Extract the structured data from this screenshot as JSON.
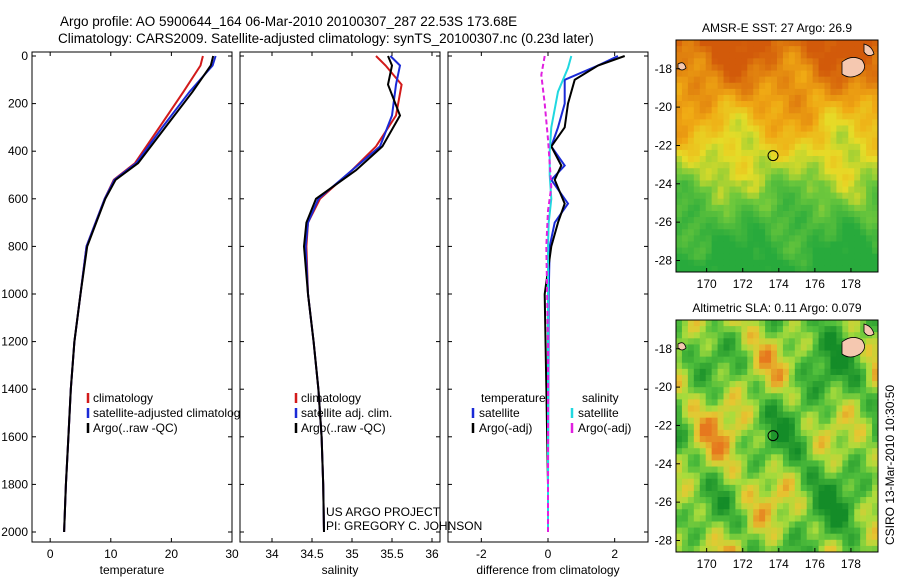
{
  "header": {
    "line1": "Argo profile: AO 5900644_164 06-Mar-2010 20100307_287 22.53S 173.68E",
    "line2": "Climatology: CARS2009. Satellite-adjusted climatology: synTS_20100307.nc (0.23d later)"
  },
  "colors": {
    "climatology": "#d21a1a",
    "satellite": "#1a2ad6",
    "argo": "#000000",
    "sal_satellite": "#20d8e0",
    "sal_argo": "#e020e0"
  },
  "chart_data": [
    {
      "type": "line",
      "name": "temperature",
      "xlabel": "temperature",
      "ylabel": "",
      "xlim": [
        -3,
        30
      ],
      "ylim": [
        2000,
        0
      ],
      "y_reversed": true,
      "xticks": [
        0,
        10,
        20,
        30
      ],
      "yticks": [
        0,
        200,
        400,
        600,
        800,
        1000,
        1200,
        1400,
        1600,
        1800,
        2000
      ],
      "series": [
        {
          "name": "climatology",
          "color": "#d21a1a",
          "x": [
            25.2,
            24.8,
            22,
            18,
            14,
            10.5,
            9,
            7.5,
            6,
            5,
            4,
            3.4,
            3,
            2.6,
            2.3
          ],
          "y": [
            0,
            40,
            150,
            300,
            450,
            520,
            600,
            700,
            800,
            1000,
            1200,
            1400,
            1600,
            1800,
            2000
          ]
        },
        {
          "name": "satellite-adjusted climatology",
          "color": "#1a2ad6",
          "x": [
            27.3,
            26.8,
            23,
            18.5,
            14.2,
            10.6,
            9,
            7.5,
            6,
            5,
            4,
            3.4,
            3,
            2.6,
            2.3
          ],
          "y": [
            0,
            40,
            150,
            300,
            450,
            520,
            600,
            700,
            800,
            1000,
            1200,
            1400,
            1600,
            1800,
            2000
          ]
        },
        {
          "name": "Argo(..raw -QC)",
          "color": "#000000",
          "x": [
            26.9,
            26.5,
            23.5,
            19,
            14.5,
            10.8,
            9.1,
            7.6,
            6.1,
            5,
            4,
            3.4,
            3,
            2.6,
            2.3
          ],
          "y": [
            0,
            40,
            150,
            300,
            450,
            520,
            600,
            700,
            800,
            1000,
            1200,
            1400,
            1600,
            1800,
            2000
          ]
        }
      ],
      "legend": [
        "climatology",
        "satellite-adjusted climatology",
        "Argo(..raw -QC)"
      ]
    },
    {
      "type": "line",
      "name": "salinity",
      "xlabel": "salinity",
      "ylabel": "",
      "xlim": [
        33.6,
        36.1
      ],
      "ylim": [
        2000,
        0
      ],
      "y_reversed": true,
      "xticks": [
        34,
        34.5,
        35,
        35.5,
        36
      ],
      "series": [
        {
          "name": "climatology",
          "color": "#d21a1a",
          "x": [
            35.3,
            35.42,
            35.62,
            35.55,
            35.3,
            35.0,
            34.6,
            34.45,
            34.43,
            34.45,
            34.52,
            34.58,
            34.62,
            34.64,
            34.65
          ],
          "y": [
            0,
            40,
            120,
            250,
            380,
            480,
            600,
            700,
            800,
            1000,
            1200,
            1400,
            1600,
            1800,
            2000
          ]
        },
        {
          "name": "satellite adj. clim.",
          "color": "#1a2ad6",
          "x": [
            35.48,
            35.6,
            35.55,
            35.5,
            35.35,
            35.0,
            34.58,
            34.45,
            34.42,
            34.45,
            34.52,
            34.58,
            34.62,
            34.64,
            34.65
          ],
          "y": [
            0,
            40,
            120,
            250,
            380,
            480,
            600,
            700,
            800,
            1000,
            1200,
            1400,
            1600,
            1800,
            2000
          ]
        },
        {
          "name": "Argo(..raw -QC)",
          "color": "#000000",
          "x": [
            35.45,
            35.5,
            35.45,
            35.6,
            35.38,
            35.05,
            34.55,
            34.43,
            34.4,
            34.45,
            34.52,
            34.58,
            34.62,
            34.64,
            34.65
          ],
          "y": [
            0,
            40,
            120,
            250,
            380,
            480,
            600,
            700,
            800,
            1000,
            1200,
            1400,
            1600,
            1800,
            2000
          ]
        }
      ],
      "legend": [
        "climatology",
        "satellite adj. clim.",
        "Argo(..raw -QC)"
      ]
    },
    {
      "type": "line",
      "name": "difference",
      "xlabel": "difference from climatology",
      "xlim": [
        -3.0,
        3.0
      ],
      "ylim": [
        2000,
        0
      ],
      "y_reversed": true,
      "xticks": [
        -2,
        0,
        2
      ],
      "series": [
        {
          "name": "temperature satellite",
          "color": "#1a2ad6",
          "x": [
            2.1,
            1.5,
            0.5,
            0.5,
            0.3,
            0.1,
            0.5,
            0.1,
            0.6,
            0.2,
            0.05,
            0.02,
            0.01,
            0,
            0
          ],
          "y": [
            0,
            40,
            100,
            200,
            300,
            380,
            460,
            520,
            620,
            700,
            800,
            1000,
            1400,
            1800,
            2000
          ]
        },
        {
          "name": "temperature Argo(-adj)",
          "color": "#000000",
          "x": [
            2.3,
            1.5,
            0.8,
            0.6,
            0.5,
            0.1,
            0.4,
            0.2,
            0.5,
            0.3,
            0.1,
            0,
            -0.1,
            0,
            0
          ],
          "y": [
            0,
            40,
            100,
            200,
            300,
            380,
            460,
            520,
            620,
            700,
            800,
            900,
            1000,
            1800,
            2000
          ]
        },
        {
          "name": "salinity satellite",
          "color": "#20d8e0",
          "x": [
            0.7,
            0.6,
            0.3,
            0.1,
            0.05,
            0.05,
            0.1,
            0.02,
            0,
            0,
            0,
            0
          ],
          "y": [
            0,
            50,
            150,
            300,
            400,
            500,
            600,
            700,
            800,
            1200,
            1600,
            2000
          ]
        },
        {
          "name": "salinity Argo(-adj)",
          "color": "#e020e0",
          "x": [
            -0.1,
            -0.2,
            -0.1,
            0,
            0.05,
            0.1,
            0,
            -0.05,
            0,
            0,
            0
          ],
          "y": [
            0,
            80,
            200,
            350,
            450,
            550,
            650,
            800,
            1200,
            1600,
            2000
          ]
        }
      ],
      "legend_left_title": "temperature",
      "legend_left": [
        "satellite",
        "Argo(-adj)"
      ],
      "legend_right_title": "salinity",
      "legend_right": [
        "satellite",
        "Argo(-adj)"
      ]
    },
    {
      "type": "heatmap",
      "title": "AMSR-E SST: 27 Argo: 26.9",
      "xticks": [
        170,
        172,
        174,
        176,
        178
      ],
      "yticks": [
        -18,
        -20,
        -22,
        -24,
        -26,
        -28
      ],
      "xlim": [
        168.3,
        179.5
      ],
      "ylim": [
        -28.6,
        -16.5
      ],
      "marker": [
        173.68,
        -22.53
      ]
    },
    {
      "type": "heatmap",
      "title": "Altimetric SLA: 0.11 Argo: 0.079",
      "xticks": [
        170,
        172,
        174,
        176,
        178
      ],
      "yticks": [
        -18,
        -20,
        -22,
        -24,
        -26,
        -28
      ],
      "xlim": [
        168.3,
        179.5
      ],
      "ylim": [
        -28.6,
        -16.5
      ],
      "marker": [
        173.68,
        -22.53
      ]
    }
  ],
  "footer": {
    "project": "US ARGO PROJECT",
    "pi": "PI: GREGORY C. JOHNSON",
    "stamp": "CSIRO 13-Mar-2010 10:30:50"
  }
}
